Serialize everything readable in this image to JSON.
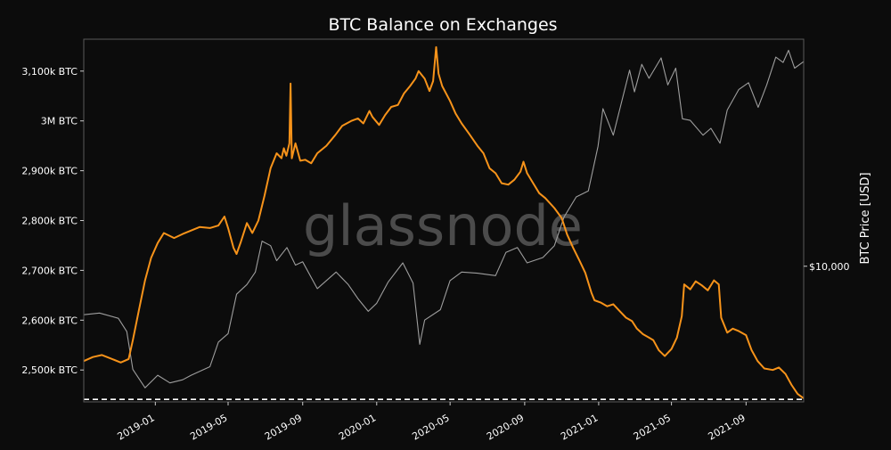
{
  "chart_data": {
    "type": "line",
    "title": "BTC Balance on Exchanges",
    "watermark": "glassnode",
    "y_left": {
      "ticks": [
        2500,
        2600,
        2700,
        2800,
        2900,
        3000,
        3100
      ],
      "tick_labels": [
        "2,500k BTC",
        "2,600k BTC",
        "2,700k BTC",
        "2,800k BTC",
        "2,900k BTC",
        "3M BTC",
        "3,100k BTC"
      ],
      "range": [
        2436,
        3164
      ],
      "unit": "k BTC"
    },
    "y_right": {
      "label": "BTC Price [USD]",
      "scale": "log",
      "ticks": [
        10000
      ],
      "tick_labels": [
        "$10,000"
      ],
      "range": [
        3000,
        75000
      ]
    },
    "x_axis": {
      "range": [
        "2018-09-05",
        "2021-12-05"
      ],
      "ticks": [
        "2019-01-01",
        "2019-05-01",
        "2019-09-01",
        "2020-01-01",
        "2020-05-01",
        "2020-09-01",
        "2021-01-01",
        "2021-05-01",
        "2021-09-01"
      ],
      "tick_labels": [
        "2019-01",
        "2019-05",
        "2019-09",
        "2020-01",
        "2020-05",
        "2020-09",
        "2021-01",
        "2021-05",
        "2021-09"
      ]
    },
    "reference_line": {
      "style": "dashed",
      "color": "#ffffff",
      "value": 2441
    },
    "series": [
      {
        "axis": "left",
        "color": "#f7931a",
        "points": [
          [
            "2018-09-05",
            2518
          ],
          [
            "2018-09-20",
            2526
          ],
          [
            "2018-10-05",
            2530
          ],
          [
            "2018-10-20",
            2523
          ],
          [
            "2018-11-05",
            2515
          ],
          [
            "2018-11-18",
            2522
          ],
          [
            "2018-11-25",
            2560
          ],
          [
            "2018-12-05",
            2620
          ],
          [
            "2018-12-15",
            2680
          ],
          [
            "2018-12-25",
            2725
          ],
          [
            "2019-01-05",
            2755
          ],
          [
            "2019-01-15",
            2775
          ],
          [
            "2019-02-01",
            2765
          ],
          [
            "2019-02-15",
            2773
          ],
          [
            "2019-03-01",
            2780
          ],
          [
            "2019-03-15",
            2787
          ],
          [
            "2019-04-01",
            2785
          ],
          [
            "2019-04-15",
            2790
          ],
          [
            "2019-04-25",
            2808
          ],
          [
            "2019-05-01",
            2785
          ],
          [
            "2019-05-10",
            2745
          ],
          [
            "2019-05-15",
            2733
          ],
          [
            "2019-05-22",
            2757
          ],
          [
            "2019-06-01",
            2795
          ],
          [
            "2019-06-10",
            2775
          ],
          [
            "2019-06-20",
            2800
          ],
          [
            "2019-06-30",
            2850
          ],
          [
            "2019-07-10",
            2905
          ],
          [
            "2019-07-20",
            2935
          ],
          [
            "2019-07-28",
            2925
          ],
          [
            "2019-08-01",
            2945
          ],
          [
            "2019-08-05",
            2930
          ],
          [
            "2019-08-10",
            2955
          ],
          [
            "2019-08-12",
            3075
          ],
          [
            "2019-08-14",
            2925
          ],
          [
            "2019-08-20",
            2955
          ],
          [
            "2019-08-28",
            2920
          ],
          [
            "2019-09-05",
            2922
          ],
          [
            "2019-09-15",
            2915
          ],
          [
            "2019-09-25",
            2935
          ],
          [
            "2019-10-10",
            2950
          ],
          [
            "2019-10-25",
            2972
          ],
          [
            "2019-11-05",
            2990
          ],
          [
            "2019-11-20",
            3000
          ],
          [
            "2019-12-01",
            3005
          ],
          [
            "2019-12-10",
            2995
          ],
          [
            "2019-12-20",
            3020
          ],
          [
            "2019-12-25",
            3008
          ],
          [
            "2020-01-05",
            2992
          ],
          [
            "2020-01-15",
            3012
          ],
          [
            "2020-01-25",
            3028
          ],
          [
            "2020-02-05",
            3032
          ],
          [
            "2020-02-15",
            3055
          ],
          [
            "2020-02-25",
            3070
          ],
          [
            "2020-03-05",
            3085
          ],
          [
            "2020-03-10",
            3100
          ],
          [
            "2020-03-20",
            3085
          ],
          [
            "2020-03-28",
            3060
          ],
          [
            "2020-04-03",
            3080
          ],
          [
            "2020-04-08",
            3148
          ],
          [
            "2020-04-12",
            3095
          ],
          [
            "2020-04-18",
            3070
          ],
          [
            "2020-05-01",
            3040
          ],
          [
            "2020-05-10",
            3015
          ],
          [
            "2020-05-20",
            2995
          ],
          [
            "2020-06-01",
            2975
          ],
          [
            "2020-06-15",
            2950
          ],
          [
            "2020-06-25",
            2935
          ],
          [
            "2020-07-05",
            2905
          ],
          [
            "2020-07-15",
            2895
          ],
          [
            "2020-07-25",
            2875
          ],
          [
            "2020-08-05",
            2872
          ],
          [
            "2020-08-15",
            2882
          ],
          [
            "2020-08-25",
            2898
          ],
          [
            "2020-08-30",
            2918
          ],
          [
            "2020-09-05",
            2895
          ],
          [
            "2020-09-15",
            2875
          ],
          [
            "2020-09-25",
            2855
          ],
          [
            "2020-10-05",
            2845
          ],
          [
            "2020-10-20",
            2825
          ],
          [
            "2020-11-01",
            2805
          ],
          [
            "2020-11-10",
            2772
          ],
          [
            "2020-11-20",
            2745
          ],
          [
            "2020-12-01",
            2718
          ],
          [
            "2020-12-10",
            2695
          ],
          [
            "2020-12-20",
            2655
          ],
          [
            "2020-12-25",
            2640
          ],
          [
            "2021-01-05",
            2635
          ],
          [
            "2021-01-15",
            2628
          ],
          [
            "2021-01-25",
            2632
          ],
          [
            "2021-02-05",
            2618
          ],
          [
            "2021-02-15",
            2605
          ],
          [
            "2021-02-25",
            2598
          ],
          [
            "2021-03-05",
            2583
          ],
          [
            "2021-03-15",
            2572
          ],
          [
            "2021-03-25",
            2565
          ],
          [
            "2021-04-01",
            2560
          ],
          [
            "2021-04-10",
            2540
          ],
          [
            "2021-04-20",
            2528
          ],
          [
            "2021-05-01",
            2542
          ],
          [
            "2021-05-10",
            2565
          ],
          [
            "2021-05-18",
            2608
          ],
          [
            "2021-05-22",
            2672
          ],
          [
            "2021-06-01",
            2662
          ],
          [
            "2021-06-10",
            2678
          ],
          [
            "2021-06-20",
            2670
          ],
          [
            "2021-06-30",
            2660
          ],
          [
            "2021-07-10",
            2680
          ],
          [
            "2021-07-18",
            2672
          ],
          [
            "2021-07-22",
            2605
          ],
          [
            "2021-08-01",
            2575
          ],
          [
            "2021-08-10",
            2583
          ],
          [
            "2021-08-20",
            2578
          ],
          [
            "2021-09-01",
            2570
          ],
          [
            "2021-09-10",
            2540
          ],
          [
            "2021-09-20",
            2518
          ],
          [
            "2021-10-01",
            2503
          ],
          [
            "2021-10-15",
            2500
          ],
          [
            "2021-10-25",
            2505
          ],
          [
            "2021-11-05",
            2492
          ],
          [
            "2021-11-15",
            2470
          ],
          [
            "2021-11-25",
            2452
          ],
          [
            "2021-12-05",
            2443
          ]
        ]
      },
      {
        "axis": "right",
        "color": "#9e9e9e",
        "points": [
          [
            "2018-09-05",
            6500
          ],
          [
            "2018-10-01",
            6600
          ],
          [
            "2018-11-01",
            6300
          ],
          [
            "2018-11-15",
            5600
          ],
          [
            "2018-11-25",
            4000
          ],
          [
            "2018-12-15",
            3400
          ],
          [
            "2019-01-05",
            3800
          ],
          [
            "2019-01-25",
            3550
          ],
          [
            "2019-02-15",
            3650
          ],
          [
            "2019-03-01",
            3800
          ],
          [
            "2019-04-01",
            4100
          ],
          [
            "2019-04-15",
            5100
          ],
          [
            "2019-05-01",
            5500
          ],
          [
            "2019-05-15",
            7800
          ],
          [
            "2019-06-01",
            8500
          ],
          [
            "2019-06-15",
            9500
          ],
          [
            "2019-06-26",
            12500
          ],
          [
            "2019-07-10",
            12000
          ],
          [
            "2019-07-20",
            10500
          ],
          [
            "2019-08-06",
            11800
          ],
          [
            "2019-08-20",
            10100
          ],
          [
            "2019-09-01",
            10400
          ],
          [
            "2019-09-25",
            8200
          ],
          [
            "2019-10-26",
            9500
          ],
          [
            "2019-11-15",
            8500
          ],
          [
            "2019-12-01",
            7500
          ],
          [
            "2019-12-18",
            6700
          ],
          [
            "2020-01-01",
            7200
          ],
          [
            "2020-01-20",
            8700
          ],
          [
            "2020-02-13",
            10300
          ],
          [
            "2020-03-01",
            8600
          ],
          [
            "2020-03-12",
            5000
          ],
          [
            "2020-03-20",
            6200
          ],
          [
            "2020-04-15",
            6800
          ],
          [
            "2020-05-01",
            8800
          ],
          [
            "2020-05-20",
            9500
          ],
          [
            "2020-06-15",
            9400
          ],
          [
            "2020-07-15",
            9200
          ],
          [
            "2020-08-01",
            11300
          ],
          [
            "2020-08-20",
            11800
          ],
          [
            "2020-09-05",
            10300
          ],
          [
            "2020-10-01",
            10800
          ],
          [
            "2020-10-20",
            12000
          ],
          [
            "2020-11-05",
            15500
          ],
          [
            "2020-11-25",
            18500
          ],
          [
            "2020-12-15",
            19500
          ],
          [
            "2020-12-31",
            29000
          ],
          [
            "2021-01-08",
            40500
          ],
          [
            "2021-01-25",
            32000
          ],
          [
            "2021-02-10",
            45000
          ],
          [
            "2021-02-21",
            57000
          ],
          [
            "2021-03-01",
            47000
          ],
          [
            "2021-03-13",
            60000
          ],
          [
            "2021-03-25",
            53000
          ],
          [
            "2021-04-14",
            63500
          ],
          [
            "2021-04-25",
            50000
          ],
          [
            "2021-05-08",
            58000
          ],
          [
            "2021-05-19",
            37000
          ],
          [
            "2021-06-01",
            36500
          ],
          [
            "2021-06-22",
            32000
          ],
          [
            "2021-07-05",
            34000
          ],
          [
            "2021-07-20",
            29800
          ],
          [
            "2021-08-01",
            40000
          ],
          [
            "2021-08-20",
            48000
          ],
          [
            "2021-09-05",
            51000
          ],
          [
            "2021-09-21",
            41000
          ],
          [
            "2021-10-05",
            50000
          ],
          [
            "2021-10-20",
            64000
          ],
          [
            "2021-11-01",
            61000
          ],
          [
            "2021-11-10",
            68000
          ],
          [
            "2021-11-20",
            58000
          ],
          [
            "2021-12-05",
            61500
          ]
        ]
      }
    ]
  }
}
